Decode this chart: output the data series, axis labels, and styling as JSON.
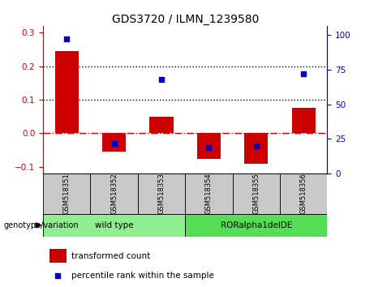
{
  "title": "GDS3720 / ILMN_1239580",
  "samples": [
    "GSM518351",
    "GSM518352",
    "GSM518353",
    "GSM518354",
    "GSM518355",
    "GSM518356"
  ],
  "bar_values": [
    0.245,
    -0.055,
    0.05,
    -0.075,
    -0.09,
    0.075
  ],
  "percentile_values": [
    97,
    22,
    68,
    19,
    20,
    72
  ],
  "ylim_left": [
    -0.12,
    0.32
  ],
  "ylim_right": [
    0,
    106.67
  ],
  "bar_color": "#cc0000",
  "dot_color": "#0000cc",
  "zero_line_color": "#cc0000",
  "sample_box_color": "#c8c8c8",
  "groups": [
    {
      "label": "wild type",
      "indices": [
        0,
        1,
        2
      ],
      "color": "#90ee90"
    },
    {
      "label": "RORalpha1delDE",
      "indices": [
        3,
        4,
        5
      ],
      "color": "#55dd55"
    }
  ],
  "genotype_label": "genotype/variation",
  "legend_bar_label": "transformed count",
  "legend_dot_label": "percentile rank within the sample",
  "title_fontsize": 10,
  "label_fontsize": 7,
  "tick_fontsize": 7.5,
  "bar_width": 0.5
}
